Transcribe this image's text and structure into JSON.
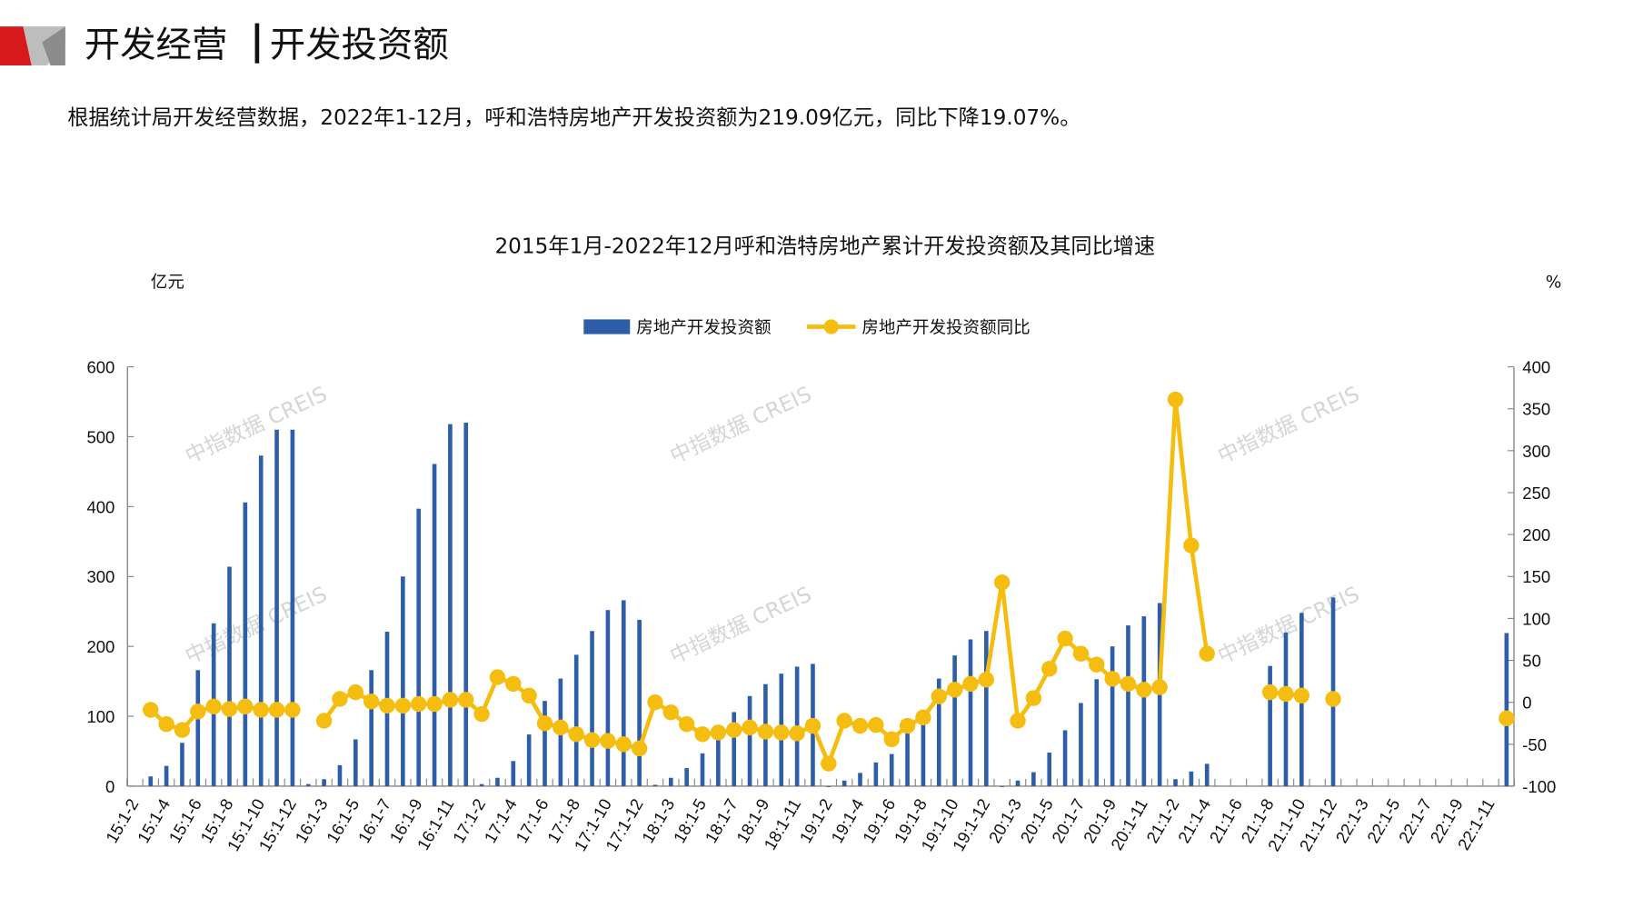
{
  "header": {
    "title_left": "开发经营",
    "title_right": "开发投资额",
    "summary": "根据统计局开发经营数据，2022年1-12月，呼和浩特房地产开发投资额为219.09亿元，同比下降19.07%。",
    "brand_colors": {
      "red": "#d7191c",
      "gray": "#9a9a9a"
    }
  },
  "watermark": "中指数据 CREIS",
  "chart_data": {
    "type": "bar+line",
    "title": "2015年1月-2022年12月呼和浩特房地产累计开发投资额及其同比增速",
    "ylabel": "亿元",
    "y2label": "%",
    "ylim": [
      0,
      600
    ],
    "y2lim": [
      -100,
      400
    ],
    "yticks": [
      "0",
      "100",
      "200",
      "300",
      "400",
      "500",
      "600"
    ],
    "y2ticks": [
      "-100",
      "-50",
      "0",
      "50",
      "100",
      "150",
      "200",
      "250",
      "300",
      "350",
      "400"
    ],
    "legend": {
      "placement": "top-center",
      "bar": "房地产开发投资额",
      "line": "房地产开发投资额同比"
    },
    "colors": {
      "bar": "#2f5ea8",
      "line": "#f5bd10"
    },
    "x_tick_labels": [
      "15:1-2",
      "15:1-4",
      "15:1-6",
      "15:1-8",
      "15:1-10",
      "15:1-12",
      "16:1-3",
      "16:1-5",
      "16:1-7",
      "16:1-9",
      "16:1-11",
      "17:1-2",
      "17:1-4",
      "17:1-6",
      "17:1-8",
      "17:1-10",
      "17:1-12",
      "18:1-3",
      "18:1-5",
      "18:1-7",
      "18:1-9",
      "18:1-11",
      "19:1-2",
      "19:1-4",
      "19:1-6",
      "19:1-8",
      "19:1-10",
      "19:1-12",
      "20:1-3",
      "20:1-5",
      "20:1-7",
      "20:1-9",
      "20:1-11",
      "21:1-2",
      "21:1-4",
      "21:1-6",
      "21:1-8",
      "21:1-10",
      "21:1-12",
      "22:1-3",
      "22:1-5",
      "22:1-7",
      "22:1-9",
      "22:1-11"
    ],
    "series": [
      {
        "name": "房地产开发投资额",
        "type": "bar",
        "values": [
          null,
          14,
          29,
          62,
          166,
          233,
          314,
          406,
          473,
          510,
          510,
          3,
          10,
          30,
          67,
          166,
          221,
          300,
          397,
          461,
          518,
          520,
          3,
          12,
          36,
          74,
          122,
          154,
          188,
          222,
          252,
          266,
          238,
          2,
          12,
          26,
          47,
          82,
          106,
          129,
          146,
          161,
          171,
          175,
          0,
          8,
          19,
          34,
          46,
          79,
          97,
          154,
          187,
          210,
          222,
          0,
          8,
          20,
          48,
          80,
          119,
          153,
          200,
          230,
          243,
          262,
          10,
          21,
          32,
          null,
          null,
          null,
          172,
          220,
          248,
          null,
          270,
          null,
          null,
          null,
          null,
          null,
          null,
          null,
          null,
          null,
          null,
          219.09
        ]
      },
      {
        "name": "房地产开发投资额同比",
        "type": "line",
        "values": [
          null,
          -9,
          -26,
          -33,
          -11,
          -5,
          -8,
          -5,
          -9,
          -9,
          -9,
          null,
          -22,
          4,
          12,
          1,
          -4,
          -4,
          -2,
          -2,
          3,
          3,
          -14,
          30,
          22,
          8,
          -25,
          -30,
          -38,
          -45,
          -46,
          -50,
          -55,
          0,
          -12,
          -26,
          -38,
          -36,
          -33,
          -30,
          -35,
          -36,
          -37,
          -28,
          -73,
          -22,
          -28,
          -27,
          -44,
          -28,
          -18,
          7,
          15,
          22,
          27,
          143,
          -22,
          5,
          40,
          76,
          58,
          45,
          28,
          22,
          15,
          18,
          361,
          187,
          58,
          null,
          null,
          null,
          12,
          10,
          8,
          null,
          4,
          null,
          null,
          null,
          null,
          null,
          null,
          null,
          null,
          null,
          null,
          -19.07
        ]
      }
    ]
  }
}
